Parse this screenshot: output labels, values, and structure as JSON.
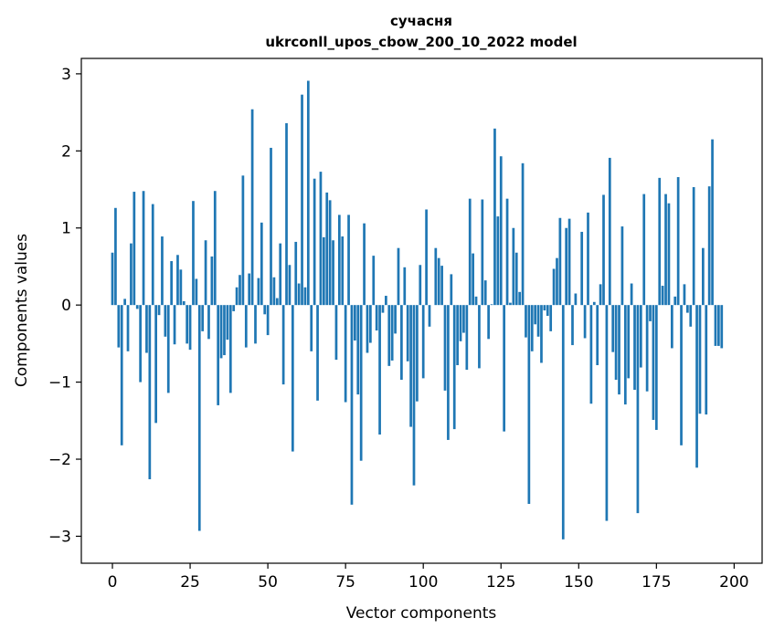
{
  "chart_data": {
    "type": "bar",
    "title": "сучасня",
    "subtitle": "ukrconll_upos_cbow_200_10_2022 model",
    "xlabel": "Vector components",
    "ylabel": "Components values",
    "xlim": [
      -10,
      209
    ],
    "ylim": [
      -3.35,
      3.2
    ],
    "xticks": [
      0,
      25,
      50,
      75,
      100,
      125,
      150,
      175,
      200
    ],
    "yticks": [
      -3,
      -2,
      -1,
      0,
      1,
      2,
      3
    ],
    "xtick_labels": [
      "0",
      "25",
      "50",
      "75",
      "100",
      "125",
      "150",
      "175",
      "200"
    ],
    "ytick_labels": [
      "−3",
      "−2",
      "−1",
      "0",
      "1",
      "2",
      "3"
    ],
    "bar_color": "#1f77b4",
    "values": [
      0.68,
      1.26,
      -0.55,
      -1.82,
      0.08,
      -0.6,
      0.8,
      1.47,
      -0.05,
      -1.0,
      1.48,
      -0.62,
      -2.26,
      1.31,
      -1.53,
      -0.13,
      0.89,
      -0.41,
      -1.14,
      0.57,
      -0.51,
      0.65,
      0.46,
      0.05,
      -0.5,
      -0.58,
      1.35,
      0.34,
      -2.93,
      -0.34,
      0.84,
      -0.44,
      0.63,
      1.48,
      -1.3,
      -0.69,
      -0.65,
      -0.45,
      -1.14,
      -0.08,
      0.23,
      0.39,
      1.68,
      -0.55,
      0.41,
      2.54,
      -0.5,
      0.35,
      1.07,
      -0.12,
      -0.39,
      2.04,
      0.36,
      0.09,
      0.8,
      -1.03,
      2.36,
      0.52,
      -1.9,
      0.82,
      0.28,
      2.73,
      0.23,
      2.91,
      -0.6,
      1.64,
      -1.24,
      1.73,
      0.88,
      1.46,
      1.36,
      0.84,
      -0.71,
      1.17,
      0.89,
      -1.26,
      1.17,
      -2.59,
      -0.46,
      -1.16,
      -2.02,
      1.06,
      -0.62,
      -0.49,
      0.64,
      -0.33,
      -1.68,
      -0.1,
      0.12,
      -0.79,
      -0.72,
      -0.37,
      0.74,
      -0.97,
      0.49,
      -0.73,
      -1.58,
      -2.34,
      -1.25,
      0.52,
      -0.95,
      1.24,
      -0.28,
      0.0,
      0.74,
      0.61,
      0.51,
      -1.11,
      -1.75,
      0.4,
      -1.61,
      -0.78,
      -0.47,
      -0.36,
      -0.84,
      1.38,
      0.67,
      0.11,
      -0.82,
      1.37,
      0.32,
      -0.44,
      0.01,
      2.29,
      1.15,
      1.93,
      -1.64,
      1.38,
      0.03,
      1.0,
      0.68,
      0.17,
      1.84,
      -0.42,
      -2.58,
      -0.6,
      -0.25,
      -0.41,
      -0.75,
      -0.07,
      -0.14,
      -0.34,
      0.47,
      0.61,
      1.13,
      -3.04,
      1.0,
      1.12,
      -0.52,
      0.15,
      0.0,
      0.95,
      -0.43,
      1.2,
      -1.28,
      0.04,
      -0.78,
      0.27,
      1.43,
      -2.8,
      1.91,
      -0.61,
      -0.97,
      -1.16,
      1.02,
      -1.29,
      -0.95,
      0.28,
      -1.1,
      -2.7,
      -0.81,
      1.44,
      -1.12,
      -0.21,
      -1.49,
      -1.62,
      1.65,
      0.25,
      1.44,
      1.32,
      -0.56,
      0.11,
      1.66,
      -1.82,
      0.27,
      -0.1,
      -0.28,
      1.53,
      -2.11,
      -1.41,
      0.74,
      -1.42,
      1.54,
      2.15,
      -0.53,
      -0.53,
      -0.56
    ]
  }
}
